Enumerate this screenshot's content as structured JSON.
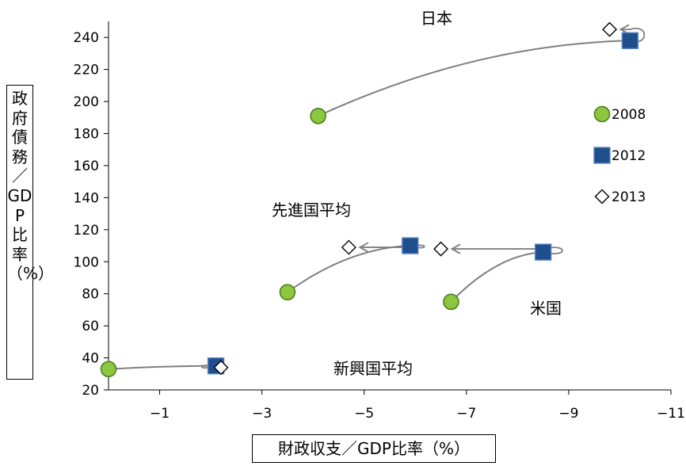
{
  "chart_data": {
    "type": "scatter",
    "xlabel": "財政収支／GDP比率（%）",
    "ylabel": "政府債務／GDP比率（%）",
    "xlim": [
      0,
      -11
    ],
    "ylim": [
      20,
      250
    ],
    "x_ticks": [
      -1,
      -3,
      -5,
      -7,
      -9,
      -11
    ],
    "y_ticks": [
      20,
      40,
      60,
      80,
      100,
      120,
      140,
      160,
      180,
      200,
      220,
      240
    ],
    "legend_position": "right",
    "series": [
      {
        "name": "2008",
        "marker": "circle",
        "color": "#8dc63f",
        "stroke": "#4a7f1e"
      },
      {
        "name": "2012",
        "marker": "square",
        "color": "#1f4e8c",
        "stroke": "#5b84c4"
      },
      {
        "name": "2013",
        "marker": "diamond",
        "color": "#ffffff",
        "stroke": "#000000"
      }
    ],
    "groups": [
      {
        "label": "日本",
        "points": [
          {
            "year": "2008",
            "x": -4.1,
            "y": 191
          },
          {
            "year": "2012",
            "x": -10.2,
            "y": 238
          },
          {
            "year": "2013",
            "x": -9.8,
            "y": 245
          }
        ]
      },
      {
        "label": "先進国平均",
        "points": [
          {
            "year": "2008",
            "x": -3.5,
            "y": 81
          },
          {
            "year": "2012",
            "x": -5.9,
            "y": 110
          },
          {
            "year": "2013",
            "x": -4.7,
            "y": 109
          }
        ]
      },
      {
        "label": "米国",
        "points": [
          {
            "year": "2008",
            "x": -6.7,
            "y": 75
          },
          {
            "year": "2012",
            "x": -8.5,
            "y": 106
          },
          {
            "year": "2013",
            "x": -6.5,
            "y": 108
          }
        ]
      },
      {
        "label": "新興国平均",
        "points": [
          {
            "year": "2008",
            "x": 0.0,
            "y": 33
          },
          {
            "year": "2012",
            "x": -2.1,
            "y": 35
          },
          {
            "year": "2013",
            "x": -2.2,
            "y": 34
          }
        ]
      }
    ]
  }
}
